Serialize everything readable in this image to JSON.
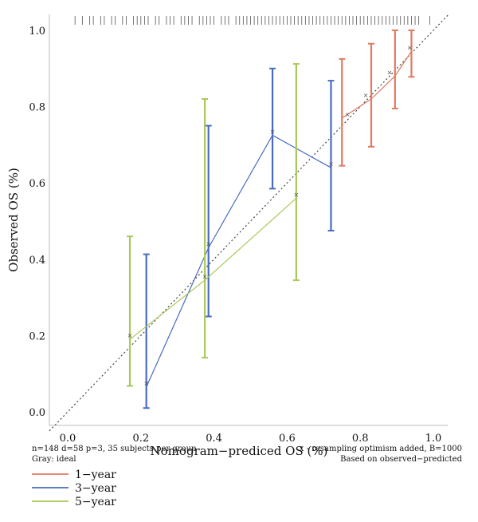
{
  "chart_data": {
    "type": "line",
    "xlabel": "Nomogram−prediced OS (%)",
    "ylabel": "Observed OS (%)",
    "xlim": [
      -0.1,
      1.05
    ],
    "ylim": [
      -0.03,
      1.04
    ],
    "x_ticks": [
      "0.0",
      "0.2",
      "0.4",
      "0.6",
      "0.8",
      "1.0"
    ],
    "y_ticks": [
      "0.0",
      "0.2",
      "0.4",
      "0.6",
      "0.8",
      "1.0"
    ],
    "ideal_line": {
      "from": [
        0,
        0
      ],
      "to": [
        1.04,
        1.04
      ],
      "color": "#555555"
    },
    "notes": {
      "left_line1": "n=148 d=58 p=3, 35 subjects per group",
      "left_line2": "Gray: ideal",
      "right_line1": "x - resampling optimism added, B=1000",
      "right_line2": "Based on observed−predicted"
    },
    "legend": [
      {
        "label": "1−year",
        "color": "#e07a62"
      },
      {
        "label": "3−year",
        "color": "#4a6bbf"
      },
      {
        "label": "5−year",
        "color": "#a9c85a"
      }
    ],
    "series": [
      {
        "name": "1−year",
        "color": "#e07a62",
        "points": [
          {
            "x": 0.75,
            "y": 0.77,
            "lo": 0.645,
            "hi": 0.925,
            "xc": 0.765
          },
          {
            "x": 0.83,
            "y": 0.82,
            "lo": 0.695,
            "hi": 0.965,
            "xc": 0.815
          },
          {
            "x": 0.895,
            "y": 0.88,
            "lo": 0.795,
            "hi": 1.0,
            "xc": 0.88
          },
          {
            "x": 0.94,
            "y": 0.945,
            "lo": 0.878,
            "hi": 1.0,
            "xc": 0.935
          }
        ]
      },
      {
        "name": "3−year",
        "color": "#4a6bbf",
        "points": [
          {
            "x": 0.215,
            "y": 0.065,
            "lo": 0.01,
            "hi": 0.413,
            "xc": 0.215
          },
          {
            "x": 0.385,
            "y": 0.43,
            "lo": 0.25,
            "hi": 0.75,
            "xc": 0.385
          },
          {
            "x": 0.56,
            "y": 0.725,
            "lo": 0.585,
            "hi": 0.9,
            "xc": 0.56
          },
          {
            "x": 0.72,
            "y": 0.64,
            "lo": 0.475,
            "hi": 0.868,
            "xc": 0.72
          }
        ]
      },
      {
        "name": "5−year",
        "color": "#a9c85a",
        "points": [
          {
            "x": 0.17,
            "y": 0.19,
            "lo": 0.068,
            "hi": 0.46,
            "xc": 0.17
          },
          {
            "x": 0.375,
            "y": 0.345,
            "lo": 0.142,
            "hi": 0.82,
            "xc": 0.375
          },
          {
            "x": 0.625,
            "y": 0.56,
            "lo": 0.345,
            "hi": 0.912,
            "xc": 0.625
          }
        ]
      }
    ],
    "rug_x": [
      0.02,
      0.04,
      0.06,
      0.07,
      0.09,
      0.1,
      0.12,
      0.13,
      0.15,
      0.16,
      0.18,
      0.19,
      0.2,
      0.21,
      0.22,
      0.24,
      0.25,
      0.27,
      0.28,
      0.29,
      0.31,
      0.32,
      0.33,
      0.34,
      0.36,
      0.37,
      0.38,
      0.39,
      0.4,
      0.42,
      0.43,
      0.44,
      0.46,
      0.47,
      0.48,
      0.49,
      0.5,
      0.51,
      0.52,
      0.53,
      0.54,
      0.55,
      0.56,
      0.57,
      0.58,
      0.59,
      0.6,
      0.61,
      0.62,
      0.63,
      0.64,
      0.65,
      0.66,
      0.67,
      0.68,
      0.69,
      0.7,
      0.71,
      0.72,
      0.73,
      0.74,
      0.75,
      0.76,
      0.77,
      0.78,
      0.79,
      0.8,
      0.81,
      0.82,
      0.83,
      0.84,
      0.85,
      0.86,
      0.87,
      0.88,
      0.89,
      0.9,
      0.91,
      0.92,
      0.93,
      0.94,
      0.95,
      0.96,
      0.99
    ]
  }
}
